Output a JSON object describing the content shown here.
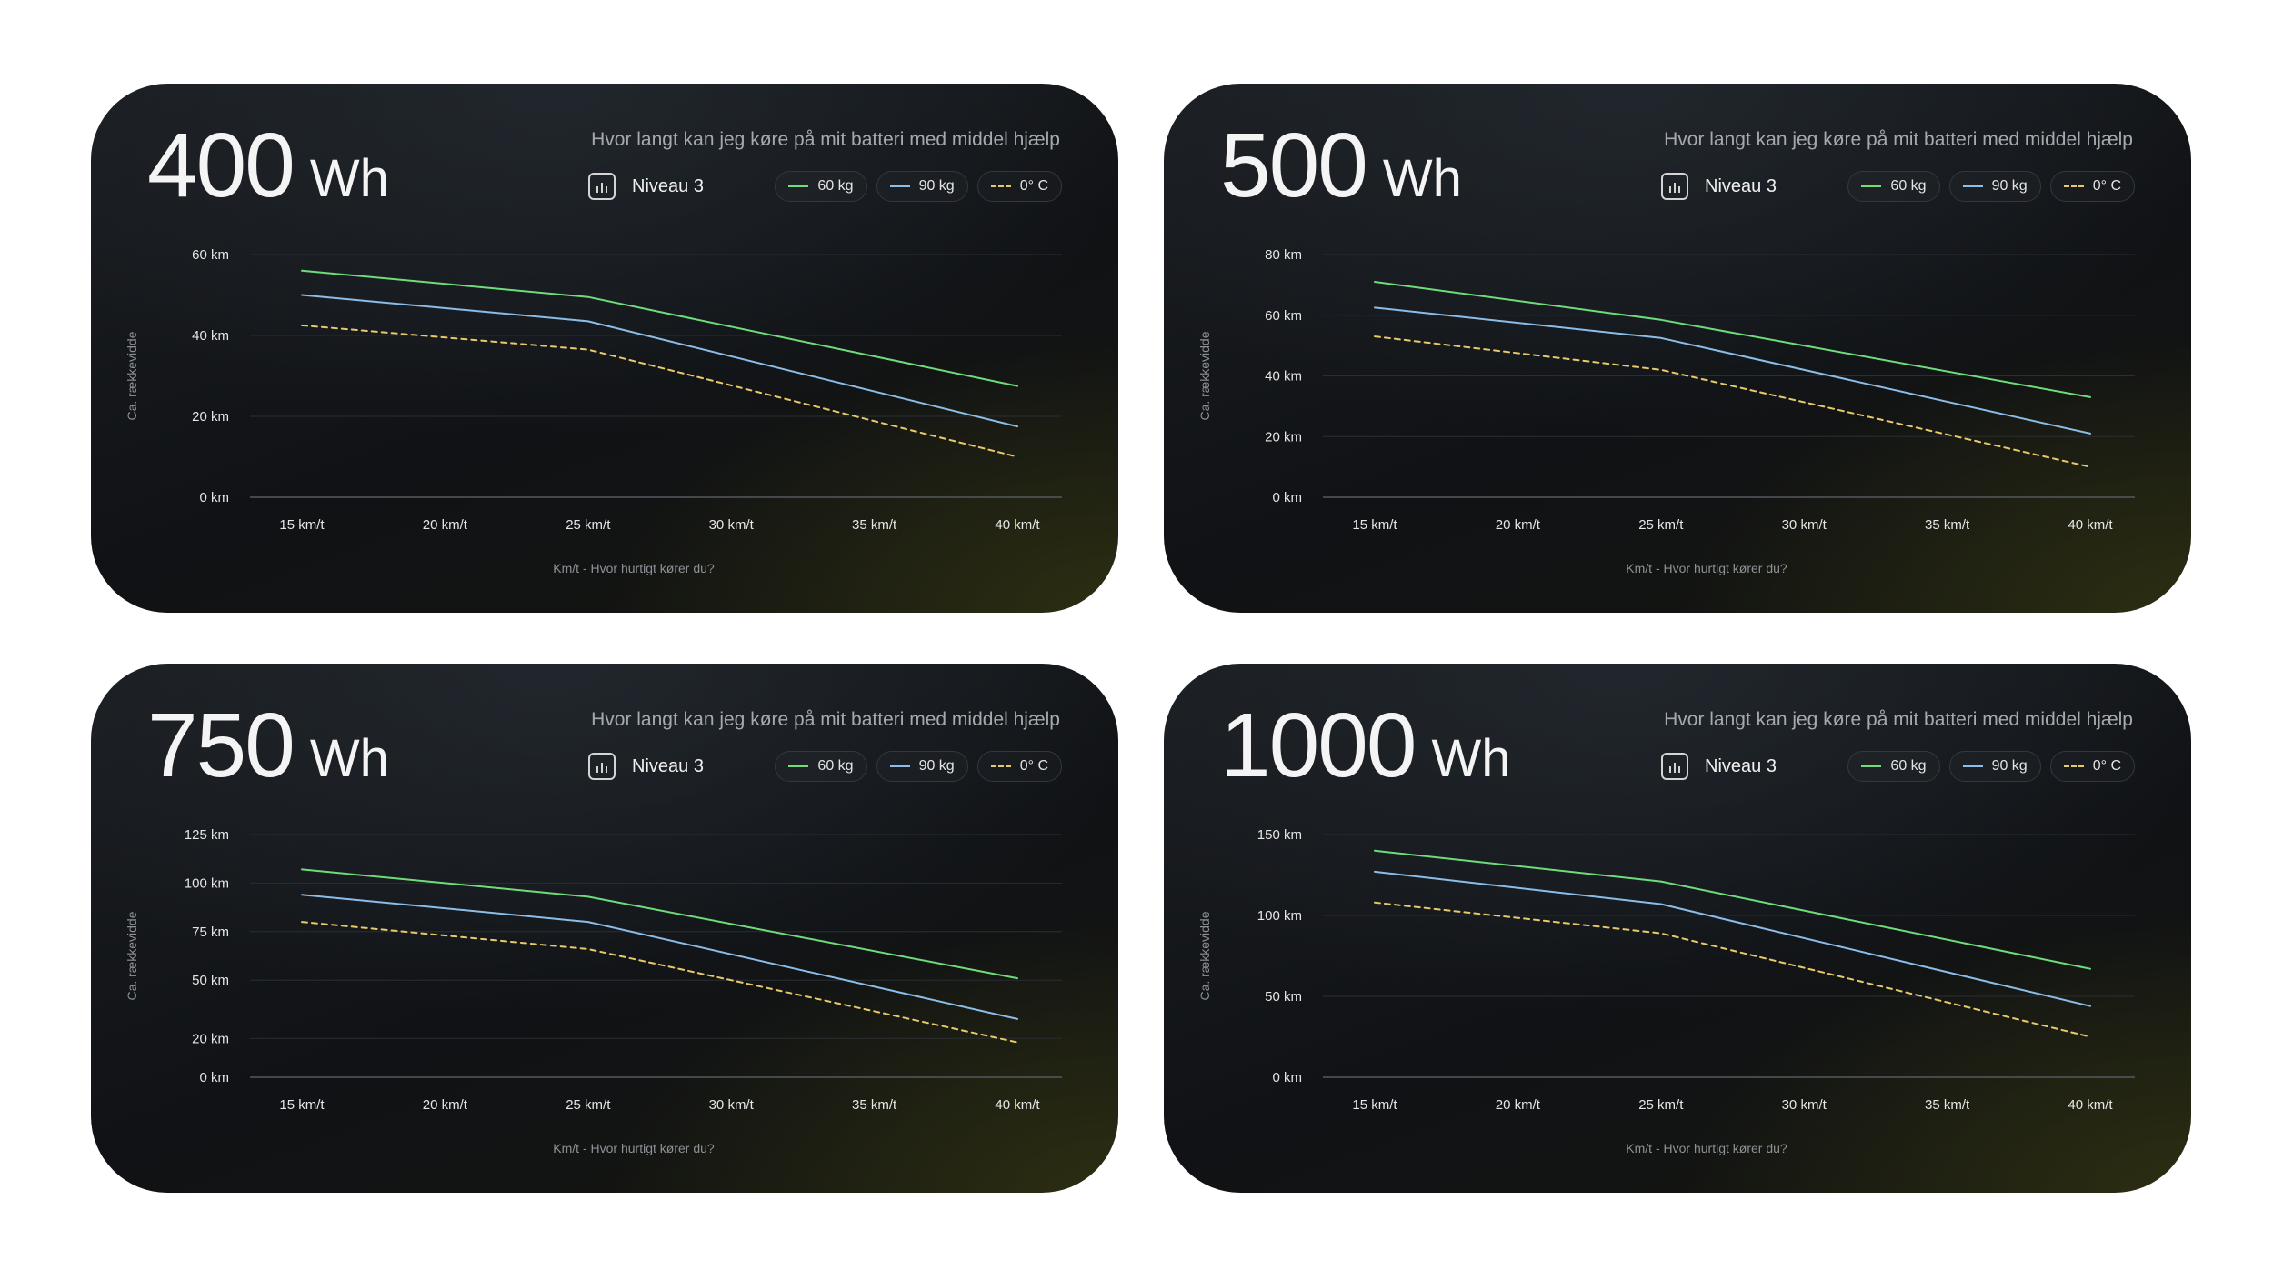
{
  "chart_data": [
    {
      "type": "line",
      "capacity": "400",
      "unit": "Wh",
      "title": "Hvor langt kan jeg køre på mit batteri med middel hjælp",
      "level": "Niveau 3",
      "xlabel": "Km/t - Hvor hurtigt kører du?",
      "ylabel": "Ca. rækkevidde",
      "categories": [
        "15 km/t",
        "20 km/t",
        "25 km/t",
        "30 km/t",
        "35 km/t",
        "40 km/t"
      ],
      "y_ticks": [
        {
          "v": 0,
          "label": "0 km"
        },
        {
          "v": 20,
          "label": "20 km"
        },
        {
          "v": 40,
          "label": "40 km"
        },
        {
          "v": 60,
          "label": "60 km"
        }
      ],
      "ylim": [
        0,
        60
      ],
      "grid": true,
      "legend": "top-right",
      "series": [
        {
          "name": "60 kg",
          "x": [
            15,
            25,
            40
          ],
          "values": [
            56,
            49.5,
            27.5
          ],
          "color": "#6fdc7b",
          "dashed": false
        },
        {
          "name": "90 kg",
          "x": [
            15,
            25,
            40
          ],
          "values": [
            50,
            43.5,
            17.5
          ],
          "color": "#8bbde8",
          "dashed": false
        },
        {
          "name": "0° C",
          "x": [
            15,
            25,
            40
          ],
          "values": [
            42.5,
            36.5,
            10
          ],
          "color": "#e8c96a",
          "dashed": true
        }
      ]
    },
    {
      "type": "line",
      "capacity": "500",
      "unit": "Wh",
      "title": "Hvor langt kan jeg køre på mit batteri med middel hjælp",
      "level": "Niveau 3",
      "xlabel": "Km/t - Hvor hurtigt kører du?",
      "ylabel": "Ca. rækkevidde",
      "categories": [
        "15 km/t",
        "20 km/t",
        "25 km/t",
        "30 km/t",
        "35 km/t",
        "40 km/t"
      ],
      "y_ticks": [
        {
          "v": 0,
          "label": "0 km"
        },
        {
          "v": 20,
          "label": "20 km"
        },
        {
          "v": 40,
          "label": "40 km"
        },
        {
          "v": 60,
          "label": "60 km"
        },
        {
          "v": 80,
          "label": "80 km"
        }
      ],
      "ylim": [
        0,
        80
      ],
      "grid": true,
      "legend": "top-right",
      "series": [
        {
          "name": "60 kg",
          "x": [
            15,
            25,
            40
          ],
          "values": [
            71,
            58.5,
            33
          ],
          "color": "#6fdc7b",
          "dashed": false
        },
        {
          "name": "90 kg",
          "x": [
            15,
            25,
            40
          ],
          "values": [
            62.5,
            52.5,
            21
          ],
          "color": "#8bbde8",
          "dashed": false
        },
        {
          "name": "0° C",
          "x": [
            15,
            25,
            40
          ],
          "values": [
            53,
            42,
            10
          ],
          "color": "#e8c96a",
          "dashed": true
        }
      ]
    },
    {
      "type": "line",
      "capacity": "750",
      "unit": "Wh",
      "title": "Hvor langt kan jeg køre på mit batteri med middel hjælp",
      "level": "Niveau 3",
      "xlabel": "Km/t - Hvor hurtigt kører du?",
      "ylabel": "Ca. rækkevidde",
      "categories": [
        "15 km/t",
        "20 km/t",
        "25 km/t",
        "30 km/t",
        "35 km/t",
        "40 km/t"
      ],
      "y_ticks": [
        {
          "v": 0,
          "label": "0 km"
        },
        {
          "v": 20,
          "label": "20 km"
        },
        {
          "v": 50,
          "label": "50 km"
        },
        {
          "v": 75,
          "label": "75 km"
        },
        {
          "v": 100,
          "label": "100 km"
        },
        {
          "v": 125,
          "label": "125 km"
        }
      ],
      "ylim": [
        0,
        125
      ],
      "grid": true,
      "legend": "top-right",
      "series": [
        {
          "name": "60 kg",
          "x": [
            15,
            25,
            40
          ],
          "values": [
            107,
            93,
            51
          ],
          "color": "#6fdc7b",
          "dashed": false
        },
        {
          "name": "90 kg",
          "x": [
            15,
            25,
            40
          ],
          "values": [
            94,
            80,
            30
          ],
          "color": "#8bbde8",
          "dashed": false
        },
        {
          "name": "0° C",
          "x": [
            15,
            25,
            40
          ],
          "values": [
            80,
            66,
            18
          ],
          "color": "#e8c96a",
          "dashed": true
        }
      ]
    },
    {
      "type": "line",
      "capacity": "1000",
      "unit": "Wh",
      "title": "Hvor langt kan jeg køre på mit batteri med middel hjælp",
      "level": "Niveau 3",
      "xlabel": "Km/t - Hvor hurtigt kører du?",
      "ylabel": "Ca. rækkevidde",
      "categories": [
        "15 km/t",
        "20 km/t",
        "25 km/t",
        "30 km/t",
        "35 km/t",
        "40 km/t"
      ],
      "y_ticks": [
        {
          "v": 0,
          "label": "0 km"
        },
        {
          "v": 50,
          "label": "50 km"
        },
        {
          "v": 100,
          "label": "100 km"
        },
        {
          "v": 150,
          "label": "150 km"
        }
      ],
      "ylim": [
        0,
        150
      ],
      "grid": true,
      "legend": "top-right",
      "series": [
        {
          "name": "60 kg",
          "x": [
            15,
            25,
            40
          ],
          "values": [
            140,
            121,
            67
          ],
          "color": "#6fdc7b",
          "dashed": false
        },
        {
          "name": "90 kg",
          "x": [
            15,
            25,
            40
          ],
          "values": [
            127,
            107,
            44
          ],
          "color": "#8bbde8",
          "dashed": false
        },
        {
          "name": "0° C",
          "x": [
            15,
            25,
            40
          ],
          "values": [
            108,
            89,
            25
          ],
          "color": "#e8c96a",
          "dashed": true
        }
      ]
    }
  ]
}
